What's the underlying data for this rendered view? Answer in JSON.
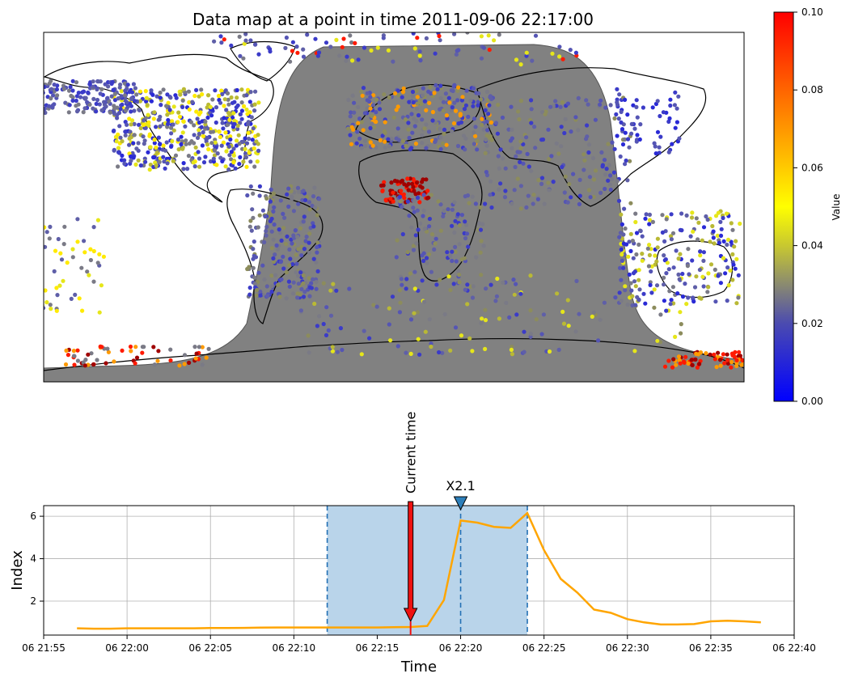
{
  "map": {
    "title": "Data map at a point in time 2011-09-06 22:17:00",
    "colorbar": {
      "label": "Value",
      "ticks": [
        "0.00",
        "0.02",
        "0.04",
        "0.06",
        "0.08",
        "0.10"
      ],
      "range": [
        0.0,
        0.1
      ],
      "colors": [
        "#0000ff",
        "#4b4bb0",
        "#8a8a70",
        "#d4d420",
        "#ffff00",
        "#ffb000",
        "#ff0000"
      ]
    },
    "night_shade_color": "#7a7a7a"
  },
  "chart_data": {
    "type": "line",
    "xlabel": "Time",
    "ylabel": "Index",
    "x_ticks": [
      "06 21:55",
      "06 22:00",
      "06 22:05",
      "06 22:10",
      "06 22:15",
      "06 22:20",
      "06 22:25",
      "06 22:30",
      "06 22:35",
      "06 22:40"
    ],
    "y_ticks": [
      "2",
      "4",
      "6"
    ],
    "xlim": [
      "2011-09-06 21:55",
      "2011-09-06 22:40"
    ],
    "ylim": [
      0.4,
      6.5
    ],
    "grid": true,
    "line_color": "#ffa500",
    "series": [
      {
        "x": [
          "21:57",
          "21:58",
          "21:59",
          "22:00",
          "22:01",
          "22:02",
          "22:03",
          "22:04",
          "22:05",
          "22:06",
          "22:07",
          "22:08",
          "22:09",
          "22:10",
          "22:11",
          "22:12",
          "22:13",
          "22:14",
          "22:15",
          "22:16",
          "22:17",
          "22:18",
          "22:19",
          "22:20",
          "22:21",
          "22:22",
          "22:23",
          "22:24",
          "22:25",
          "22:26",
          "22:27",
          "22:28",
          "22:29",
          "22:30",
          "22:31",
          "22:32",
          "22:33",
          "22:34",
          "22:35",
          "22:36",
          "22:37",
          "22:38"
        ],
        "values": [
          0.72,
          0.7,
          0.7,
          0.72,
          0.72,
          0.72,
          0.72,
          0.72,
          0.73,
          0.73,
          0.74,
          0.75,
          0.76,
          0.76,
          0.76,
          0.76,
          0.76,
          0.76,
          0.76,
          0.77,
          0.78,
          0.83,
          2.05,
          5.8,
          5.7,
          5.5,
          5.45,
          6.15,
          4.4,
          3.05,
          2.4,
          1.6,
          1.45,
          1.15,
          1.0,
          0.9,
          0.9,
          0.92,
          1.05,
          1.08,
          1.05,
          1.0
        ]
      }
    ],
    "highlight_span": {
      "start": "22:12",
      "end": "22:24",
      "color": "#b9d4ea",
      "edge_color": "#2471b5"
    },
    "peak_line": {
      "x": "22:20",
      "color": "#2471b5"
    },
    "current_time": {
      "label": "Current time",
      "x": "22:17",
      "color": "#ee1111"
    },
    "flare_marker": {
      "label": "X2.1",
      "x": "22:20",
      "color": "#2d7fba"
    }
  }
}
